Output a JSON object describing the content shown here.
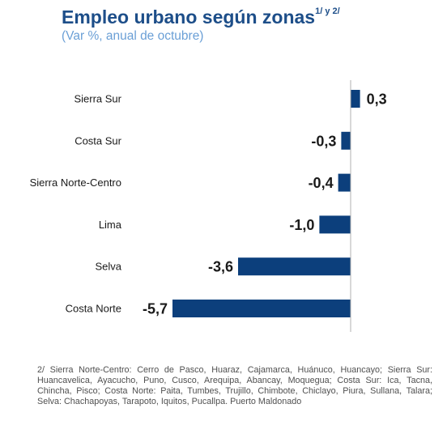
{
  "header": {
    "title": "Empleo urbano según zonas",
    "title_note": "1/ y 2/",
    "subtitle": "(Var %, anual de octubre)"
  },
  "chart_data": {
    "type": "bar",
    "orientation": "horizontal",
    "title": "Empleo urbano según zonas",
    "subtitle": "(Var %, anual de octubre)",
    "categories": [
      "Sierra Sur",
      "Costa Sur",
      "Sierra Norte-Centro",
      "Lima",
      "Selva",
      "Costa Norte"
    ],
    "values": [
      0.3,
      -0.3,
      -0.4,
      -1.0,
      -3.6,
      -5.7
    ],
    "value_labels": [
      "0,3",
      "-0,3",
      "-0,4",
      "-1,0",
      "-3,6",
      "-5,7"
    ],
    "xlim": [
      -5.7,
      0.3
    ],
    "grid": false,
    "legend": "none",
    "bar_color": "#0c3f7c",
    "axis_color": "#b0b0b0"
  },
  "footnote": "2/ Sierra Norte-Centro: Cerro de Pasco, Huaraz, Cajamarca, Huánuco, Huancayo; Sierra Sur: Huancavelica, Ayacucho, Puno, Cusco, Arequipa, Abancay, Moquegua; Costa Sur: Ica, Tacna, Chincha, Pisco; Costa Norte: Paita, Tumbes, Trujillo, Chimbote, Chiclayo, Piura, Sullana, Talara; Selva: Chachapoyas, Tarapoto, Iquitos, Pucallpa. Puerto Maldonado"
}
